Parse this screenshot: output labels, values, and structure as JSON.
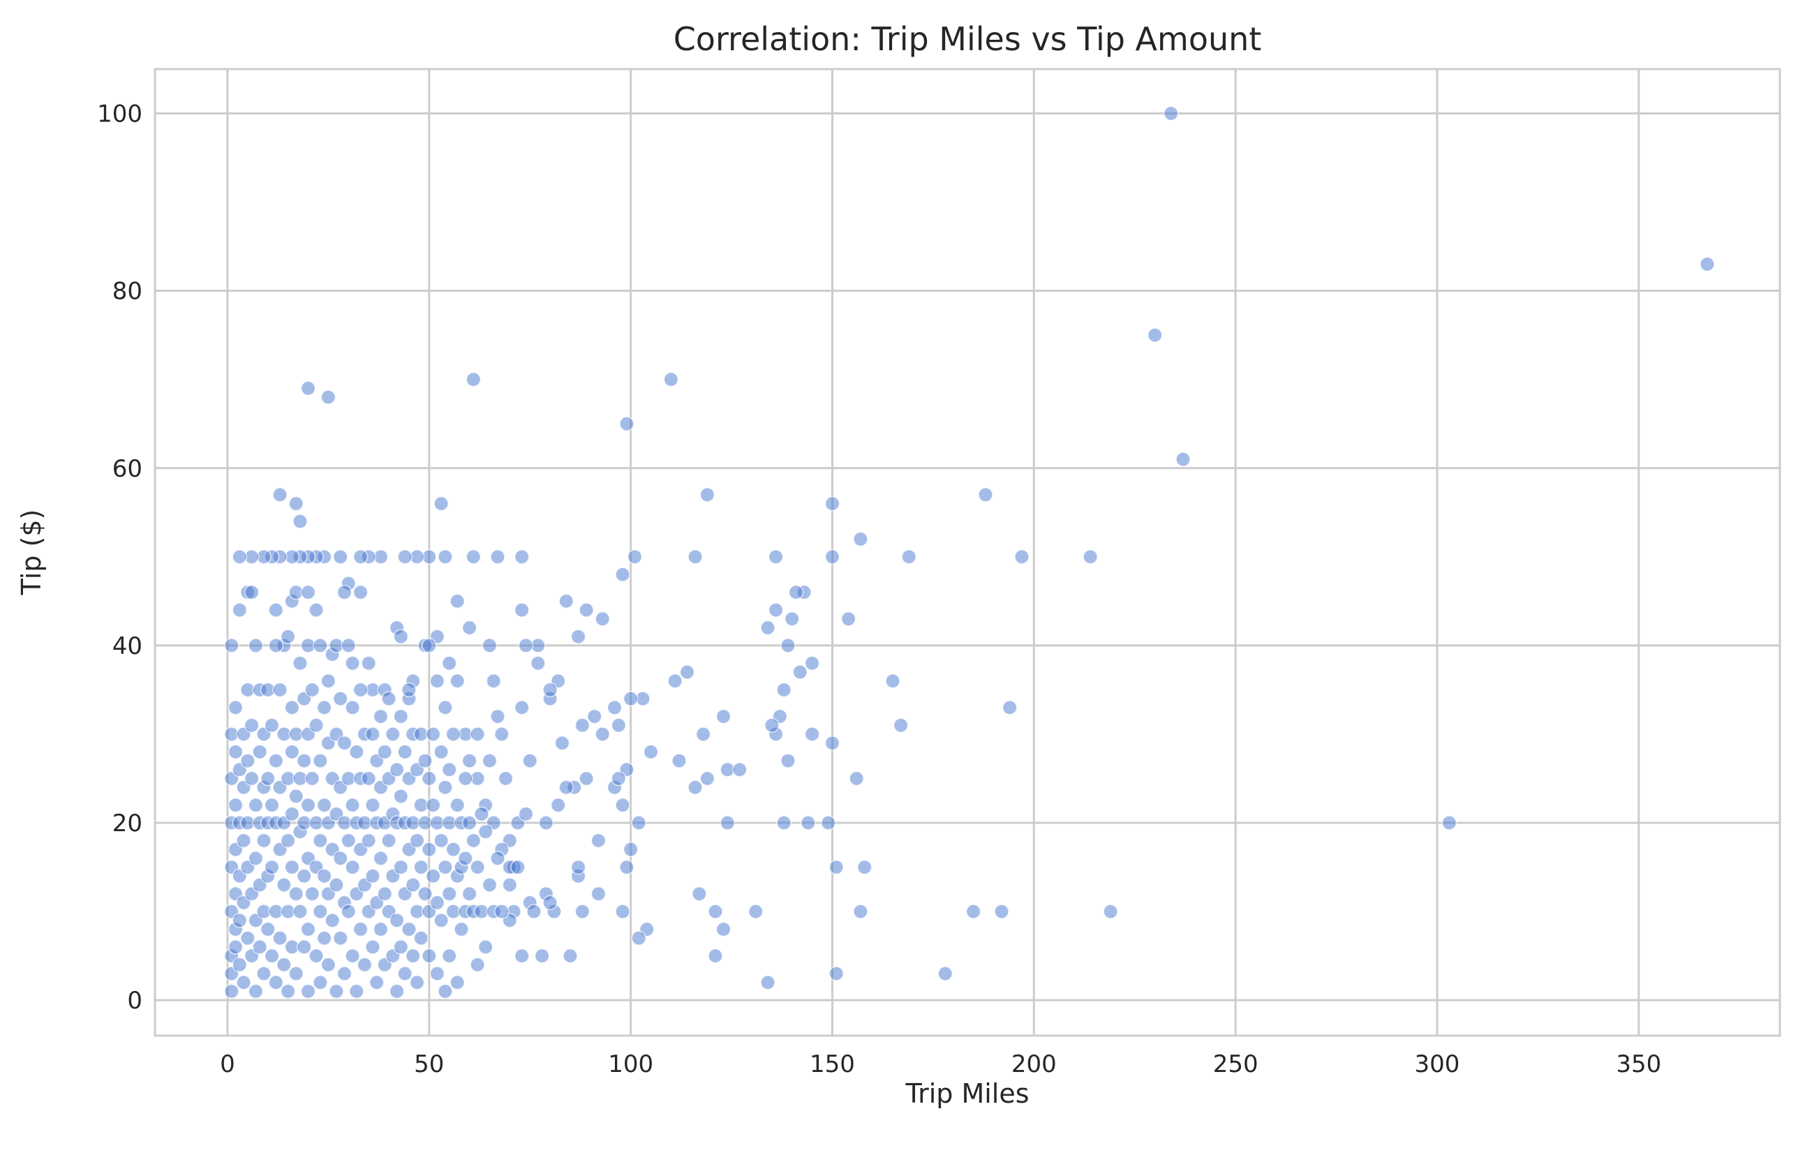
{
  "chart_data": {
    "type": "scatter",
    "title": "Correlation: Trip Miles vs Tip Amount",
    "xlabel": "Trip Miles",
    "ylabel": "Tip ($)",
    "xlim": [
      -18,
      385
    ],
    "ylim": [
      -4,
      105
    ],
    "xticks": [
      0,
      50,
      100,
      150,
      200,
      250,
      300,
      350
    ],
    "yticks": [
      0,
      20,
      40,
      60,
      80,
      100
    ],
    "grid": true,
    "color": "#4878d0",
    "alpha": 0.5,
    "points": [
      [
        234,
        100
      ],
      [
        367,
        83
      ],
      [
        230,
        75
      ],
      [
        237,
        61
      ],
      [
        20,
        69
      ],
      [
        25,
        68
      ],
      [
        61,
        70
      ],
      [
        110,
        70
      ],
      [
        99,
        65
      ],
      [
        13,
        57
      ],
      [
        17,
        56
      ],
      [
        18,
        54
      ],
      [
        53,
        56
      ],
      [
        119,
        57
      ],
      [
        150,
        56
      ],
      [
        188,
        57
      ],
      [
        157,
        52
      ],
      [
        303,
        20
      ],
      [
        219,
        10
      ],
      [
        192,
        10
      ],
      [
        185,
        10
      ],
      [
        178,
        3
      ],
      [
        194,
        33
      ],
      [
        197,
        50
      ],
      [
        214,
        50
      ],
      [
        169,
        50
      ],
      [
        165,
        36
      ],
      [
        167,
        31
      ],
      [
        156,
        25
      ],
      [
        158,
        15
      ],
      [
        157,
        10
      ],
      [
        151,
        15
      ],
      [
        151,
        3
      ],
      [
        150,
        29
      ],
      [
        149,
        20
      ],
      [
        150,
        50
      ],
      [
        154,
        43
      ],
      [
        145,
        30
      ],
      [
        144,
        20
      ],
      [
        145,
        38
      ],
      [
        143,
        46
      ],
      [
        141,
        46
      ],
      [
        140,
        43
      ],
      [
        142,
        37
      ],
      [
        138,
        35
      ],
      [
        139,
        40
      ],
      [
        137,
        32
      ],
      [
        136,
        30
      ],
      [
        135,
        31
      ],
      [
        134,
        42
      ],
      [
        136,
        44
      ],
      [
        136,
        50
      ],
      [
        138,
        20
      ],
      [
        139,
        27
      ],
      [
        134,
        2
      ],
      [
        131,
        10
      ],
      [
        124,
        26
      ],
      [
        127,
        26
      ],
      [
        123,
        32
      ],
      [
        124,
        20
      ],
      [
        123,
        8
      ],
      [
        121,
        5
      ],
      [
        121,
        10
      ],
      [
        119,
        25
      ],
      [
        118,
        30
      ],
      [
        117,
        12
      ],
      [
        116,
        24
      ],
      [
        116,
        50
      ],
      [
        114,
        37
      ],
      [
        112,
        27
      ],
      [
        111,
        36
      ],
      [
        105,
        28
      ],
      [
        104,
        8
      ],
      [
        102,
        7
      ],
      [
        103,
        34
      ],
      [
        102,
        20
      ],
      [
        101,
        50
      ],
      [
        100,
        34
      ],
      [
        100,
        17
      ],
      [
        99,
        15
      ],
      [
        98,
        10
      ],
      [
        99,
        26
      ],
      [
        98,
        22
      ],
      [
        97,
        31
      ],
      [
        98,
        48
      ],
      [
        96,
        33
      ],
      [
        96,
        24
      ],
      [
        97,
        25
      ],
      [
        93,
        43
      ],
      [
        93,
        30
      ],
      [
        92,
        12
      ],
      [
        92,
        18
      ],
      [
        91,
        32
      ],
      [
        89,
        25
      ],
      [
        89,
        44
      ],
      [
        88,
        31
      ],
      [
        87,
        14
      ],
      [
        87,
        15
      ],
      [
        88,
        10
      ],
      [
        87,
        41
      ],
      [
        86,
        24
      ],
      [
        85,
        5
      ],
      [
        84,
        45
      ],
      [
        84,
        24
      ],
      [
        83,
        29
      ],
      [
        82,
        36
      ],
      [
        82,
        22
      ],
      [
        81,
        10
      ],
      [
        80,
        34
      ],
      [
        80,
        35
      ],
      [
        79,
        12
      ],
      [
        78,
        5
      ],
      [
        77,
        40
      ],
      [
        77,
        38
      ],
      [
        75,
        27
      ],
      [
        73,
        33
      ],
      [
        73,
        50
      ],
      [
        73,
        44
      ],
      [
        74,
        40
      ],
      [
        72,
        20
      ],
      [
        71,
        15
      ],
      [
        71,
        10
      ],
      [
        74,
        21
      ],
      [
        73,
        5
      ],
      [
        70,
        18
      ],
      [
        70,
        9
      ],
      [
        68,
        30
      ],
      [
        67,
        50
      ],
      [
        66,
        36
      ],
      [
        65,
        40
      ],
      [
        64,
        6
      ],
      [
        62,
        4
      ],
      [
        61,
        50
      ],
      [
        60,
        42
      ],
      [
        57,
        45
      ],
      [
        54,
        50
      ],
      [
        50,
        50
      ],
      [
        47,
        50
      ],
      [
        44,
        50
      ],
      [
        42,
        42
      ],
      [
        38,
        50
      ],
      [
        35,
        50
      ],
      [
        33,
        50
      ],
      [
        30,
        47
      ],
      [
        28,
        50
      ],
      [
        24,
        50
      ],
      [
        22,
        50
      ],
      [
        20,
        50
      ],
      [
        18,
        50
      ],
      [
        16,
        50
      ],
      [
        13,
        50
      ],
      [
        11,
        50
      ],
      [
        9,
        50
      ],
      [
        6,
        50
      ],
      [
        3,
        50
      ],
      [
        1,
        40
      ],
      [
        3,
        44
      ],
      [
        5,
        46
      ],
      [
        6,
        46
      ],
      [
        12,
        44
      ],
      [
        14,
        40
      ],
      [
        16,
        45
      ],
      [
        17,
        46
      ],
      [
        20,
        46
      ],
      [
        22,
        44
      ],
      [
        26,
        39
      ],
      [
        29,
        46
      ],
      [
        31,
        38
      ],
      [
        33,
        46
      ],
      [
        36,
        35
      ],
      [
        39,
        35
      ],
      [
        43,
        41
      ],
      [
        45,
        34
      ],
      [
        46,
        36
      ],
      [
        49,
        40
      ],
      [
        52,
        41
      ],
      [
        55,
        38
      ],
      [
        57,
        36
      ],
      [
        59,
        30
      ],
      [
        60,
        27
      ],
      [
        62,
        25
      ],
      [
        64,
        22
      ],
      [
        66,
        20
      ],
      [
        68,
        17
      ],
      [
        70,
        15
      ],
      [
        75,
        11
      ],
      [
        80,
        11
      ],
      [
        1,
        30
      ],
      [
        1,
        25
      ],
      [
        1,
        20
      ],
      [
        1,
        15
      ],
      [
        1,
        10
      ],
      [
        1,
        5
      ],
      [
        1,
        3
      ],
      [
        1,
        1
      ],
      [
        2,
        33
      ],
      [
        2,
        28
      ],
      [
        2,
        22
      ],
      [
        2,
        17
      ],
      [
        2,
        12
      ],
      [
        2,
        8
      ],
      [
        2,
        6
      ],
      [
        3,
        26
      ],
      [
        3,
        20
      ],
      [
        3,
        14
      ],
      [
        3,
        9
      ],
      [
        3,
        4
      ],
      [
        4,
        30
      ],
      [
        4,
        24
      ],
      [
        4,
        18
      ],
      [
        4,
        11
      ],
      [
        4,
        2
      ],
      [
        5,
        35
      ],
      [
        5,
        27
      ],
      [
        5,
        20
      ],
      [
        5,
        15
      ],
      [
        5,
        7
      ],
      [
        6,
        31
      ],
      [
        6,
        25
      ],
      [
        6,
        12
      ],
      [
        6,
        5
      ],
      [
        7,
        40
      ],
      [
        7,
        22
      ],
      [
        7,
        16
      ],
      [
        7,
        9
      ],
      [
        7,
        1
      ],
      [
        8,
        35
      ],
      [
        8,
        28
      ],
      [
        8,
        20
      ],
      [
        8,
        13
      ],
      [
        8,
        6
      ],
      [
        9,
        30
      ],
      [
        9,
        24
      ],
      [
        9,
        18
      ],
      [
        9,
        10
      ],
      [
        9,
        3
      ],
      [
        10,
        35
      ],
      [
        10,
        25
      ],
      [
        10,
        20
      ],
      [
        10,
        14
      ],
      [
        10,
        8
      ],
      [
        11,
        31
      ],
      [
        11,
        22
      ],
      [
        11,
        15
      ],
      [
        11,
        5
      ],
      [
        12,
        40
      ],
      [
        12,
        27
      ],
      [
        12,
        20
      ],
      [
        12,
        10
      ],
      [
        12,
        2
      ],
      [
        13,
        35
      ],
      [
        13,
        24
      ],
      [
        13,
        17
      ],
      [
        13,
        7
      ],
      [
        14,
        30
      ],
      [
        14,
        20
      ],
      [
        14,
        13
      ],
      [
        14,
        4
      ],
      [
        15,
        41
      ],
      [
        15,
        25
      ],
      [
        15,
        18
      ],
      [
        15,
        10
      ],
      [
        15,
        1
      ],
      [
        16,
        33
      ],
      [
        16,
        28
      ],
      [
        16,
        21
      ],
      [
        16,
        15
      ],
      [
        16,
        6
      ],
      [
        17,
        30
      ],
      [
        17,
        23
      ],
      [
        17,
        12
      ],
      [
        17,
        3
      ],
      [
        18,
        38
      ],
      [
        18,
        25
      ],
      [
        18,
        19
      ],
      [
        18,
        10
      ],
      [
        19,
        34
      ],
      [
        19,
        27
      ],
      [
        19,
        20
      ],
      [
        19,
        14
      ],
      [
        19,
        6
      ],
      [
        20,
        40
      ],
      [
        20,
        30
      ],
      [
        20,
        22
      ],
      [
        20,
        16
      ],
      [
        20,
        8
      ],
      [
        20,
        1
      ],
      [
        21,
        35
      ],
      [
        21,
        25
      ],
      [
        21,
        12
      ],
      [
        22,
        31
      ],
      [
        22,
        20
      ],
      [
        22,
        15
      ],
      [
        22,
        5
      ],
      [
        23,
        40
      ],
      [
        23,
        27
      ],
      [
        23,
        18
      ],
      [
        23,
        10
      ],
      [
        23,
        2
      ],
      [
        24,
        33
      ],
      [
        24,
        22
      ],
      [
        24,
        14
      ],
      [
        24,
        7
      ],
      [
        25,
        36
      ],
      [
        25,
        29
      ],
      [
        25,
        20
      ],
      [
        25,
        12
      ],
      [
        25,
        4
      ],
      [
        26,
        25
      ],
      [
        26,
        17
      ],
      [
        26,
        9
      ],
      [
        27,
        40
      ],
      [
        27,
        30
      ],
      [
        27,
        21
      ],
      [
        27,
        13
      ],
      [
        27,
        1
      ],
      [
        28,
        34
      ],
      [
        28,
        24
      ],
      [
        28,
        16
      ],
      [
        28,
        7
      ],
      [
        29,
        29
      ],
      [
        29,
        20
      ],
      [
        29,
        11
      ],
      [
        29,
        3
      ],
      [
        30,
        40
      ],
      [
        30,
        25
      ],
      [
        30,
        18
      ],
      [
        30,
        10
      ],
      [
        31,
        33
      ],
      [
        31,
        22
      ],
      [
        31,
        15
      ],
      [
        31,
        5
      ],
      [
        32,
        28
      ],
      [
        32,
        20
      ],
      [
        32,
        12
      ],
      [
        32,
        1
      ],
      [
        33,
        35
      ],
      [
        33,
        25
      ],
      [
        33,
        17
      ],
      [
        33,
        8
      ],
      [
        34,
        30
      ],
      [
        34,
        20
      ],
      [
        34,
        13
      ],
      [
        34,
        4
      ],
      [
        35,
        38
      ],
      [
        35,
        25
      ],
      [
        35,
        18
      ],
      [
        35,
        10
      ],
      [
        36,
        30
      ],
      [
        36,
        22
      ],
      [
        36,
        14
      ],
      [
        36,
        6
      ],
      [
        37,
        27
      ],
      [
        37,
        20
      ],
      [
        37,
        11
      ],
      [
        37,
        2
      ],
      [
        38,
        32
      ],
      [
        38,
        24
      ],
      [
        38,
        16
      ],
      [
        38,
        8
      ],
      [
        39,
        28
      ],
      [
        39,
        20
      ],
      [
        39,
        12
      ],
      [
        39,
        4
      ],
      [
        40,
        34
      ],
      [
        40,
        25
      ],
      [
        40,
        18
      ],
      [
        40,
        10
      ],
      [
        41,
        30
      ],
      [
        41,
        21
      ],
      [
        41,
        14
      ],
      [
        41,
        5
      ],
      [
        42,
        26
      ],
      [
        42,
        20
      ],
      [
        42,
        9
      ],
      [
        42,
        1
      ],
      [
        43,
        32
      ],
      [
        43,
        23
      ],
      [
        43,
        15
      ],
      [
        43,
        6
      ],
      [
        44,
        28
      ],
      [
        44,
        20
      ],
      [
        44,
        12
      ],
      [
        44,
        3
      ],
      [
        45,
        35
      ],
      [
        45,
        25
      ],
      [
        45,
        17
      ],
      [
        45,
        8
      ],
      [
        46,
        30
      ],
      [
        46,
        20
      ],
      [
        46,
        13
      ],
      [
        46,
        5
      ],
      [
        47,
        26
      ],
      [
        47,
        18
      ],
      [
        47,
        10
      ],
      [
        47,
        2
      ],
      [
        48,
        30
      ],
      [
        48,
        22
      ],
      [
        48,
        15
      ],
      [
        48,
        7
      ],
      [
        49,
        27
      ],
      [
        49,
        20
      ],
      [
        49,
        12
      ],
      [
        50,
        40
      ],
      [
        50,
        25
      ],
      [
        50,
        17
      ],
      [
        50,
        10
      ],
      [
        50,
        5
      ],
      [
        51,
        30
      ],
      [
        51,
        22
      ],
      [
        51,
        14
      ],
      [
        52,
        36
      ],
      [
        52,
        20
      ],
      [
        52,
        11
      ],
      [
        52,
        3
      ],
      [
        53,
        28
      ],
      [
        53,
        18
      ],
      [
        53,
        9
      ],
      [
        54,
        33
      ],
      [
        54,
        24
      ],
      [
        54,
        15
      ],
      [
        54,
        1
      ],
      [
        55,
        26
      ],
      [
        55,
        20
      ],
      [
        55,
        12
      ],
      [
        55,
        5
      ],
      [
        56,
        30
      ],
      [
        56,
        17
      ],
      [
        56,
        10
      ],
      [
        57,
        22
      ],
      [
        57,
        14
      ],
      [
        57,
        2
      ],
      [
        58,
        20
      ],
      [
        58,
        15
      ],
      [
        58,
        8
      ],
      [
        59,
        25
      ],
      [
        59,
        16
      ],
      [
        59,
        10
      ],
      [
        60,
        20
      ],
      [
        60,
        12
      ],
      [
        61,
        18
      ],
      [
        61,
        10
      ],
      [
        62,
        30
      ],
      [
        62,
        15
      ],
      [
        63,
        21
      ],
      [
        63,
        10
      ],
      [
        64,
        19
      ],
      [
        65,
        13
      ],
      [
        65,
        27
      ],
      [
        66,
        10
      ],
      [
        67,
        16
      ],
      [
        67,
        32
      ],
      [
        68,
        10
      ],
      [
        69,
        25
      ],
      [
        70,
        13
      ],
      [
        72,
        15
      ],
      [
        76,
        10
      ],
      [
        79,
        20
      ]
    ]
  }
}
